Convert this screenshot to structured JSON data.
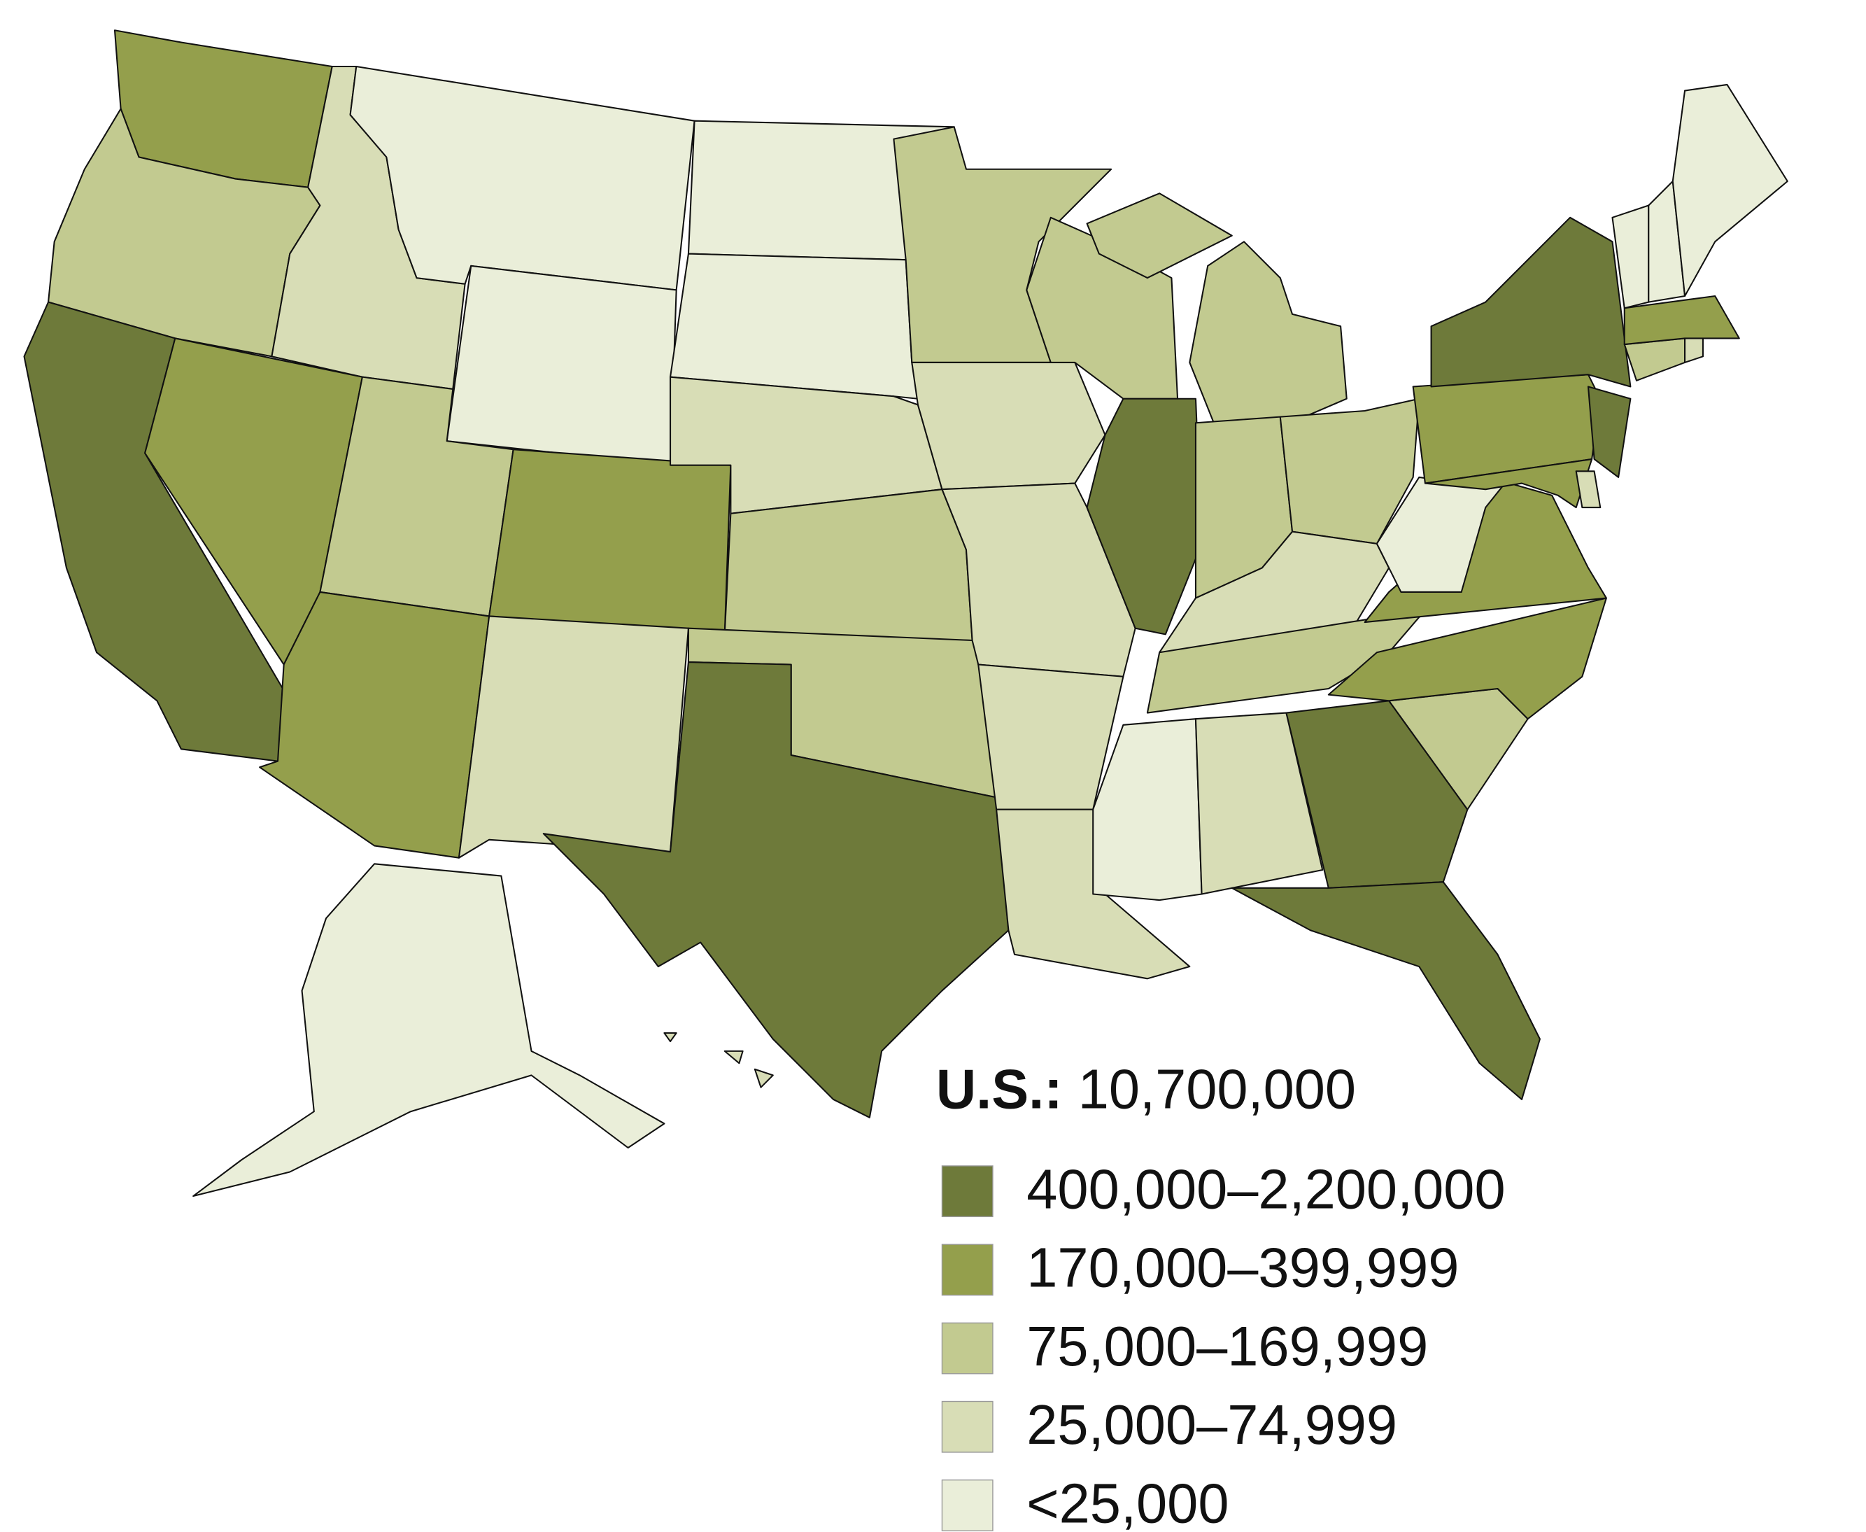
{
  "summary": {
    "label": "U.S.:",
    "value": "10,700,000"
  },
  "legend": [
    {
      "label": "400,000–2,200,000",
      "color": "#6e7a3a"
    },
    {
      "label": "170,000–399,999",
      "color": "#949f4c"
    },
    {
      "label": "75,000–169,999",
      "color": "#c2ca90"
    },
    {
      "label": "25,000–74,999",
      "color": "#d8ddb6"
    },
    {
      "label": "<25,000",
      "color": "#eaeed9"
    }
  ],
  "states": {
    "WA": 1,
    "OR": 2,
    "CA": 0,
    "ID": 3,
    "NV": 1,
    "MT": 4,
    "WY": 4,
    "UT": 2,
    "CO": 1,
    "AZ": 1,
    "NM": 3,
    "ND": 4,
    "SD": 4,
    "NE": 3,
    "KS": 2,
    "OK": 2,
    "TX": 0,
    "MN": 2,
    "IA": 3,
    "MO": 3,
    "AR": 3,
    "LA": 3,
    "WI": 2,
    "IL": 0,
    "MI": 2,
    "IN": 2,
    "OH": 2,
    "KY": 3,
    "TN": 2,
    "MS": 4,
    "AL": 3,
    "GA": 0,
    "FL": 0,
    "SC": 2,
    "NC": 1,
    "VA": 1,
    "WV": 4,
    "PA": 1,
    "NY": 0,
    "NJ": 0,
    "MD": 1,
    "DE": 3,
    "CT": 2,
    "RI": 3,
    "MA": 1,
    "VT": 4,
    "NH": 4,
    "ME": 4,
    "AK": 4,
    "HI": 3
  }
}
